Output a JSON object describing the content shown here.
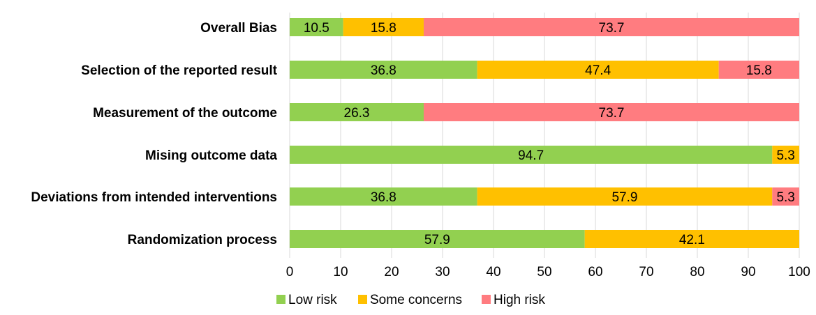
{
  "chart_data": {
    "type": "bar",
    "orientation": "horizontal",
    "stacked": true,
    "categories": [
      "Overall Bias",
      "Selection of the reported result",
      "Measurement of the outcome",
      "Mising outcome data",
      "Deviations from intended interventions",
      "Randomization process"
    ],
    "series": [
      {
        "name": "Low risk",
        "color": "#92d050",
        "values": [
          10.5,
          36.8,
          26.3,
          94.7,
          36.8,
          57.9
        ],
        "labels": [
          "10.5",
          "36.8",
          "26.3",
          "94.7",
          "36.8",
          "57.9"
        ]
      },
      {
        "name": "Some concerns",
        "color": "#ffc000",
        "values": [
          15.8,
          47.4,
          0,
          5.3,
          57.9,
          42.1
        ],
        "labels": [
          "15.8",
          "47.4",
          "",
          "5.3",
          "57.9",
          "42.1"
        ]
      },
      {
        "name": "High risk",
        "color": "#ff7c80",
        "values": [
          73.7,
          15.8,
          73.7,
          0,
          5.3,
          0
        ],
        "labels": [
          "73.7",
          "15.8",
          "73.7",
          "",
          "5.3",
          ""
        ]
      }
    ],
    "xlim": [
      0,
      100
    ],
    "xticks": [
      "0",
      "10",
      "20",
      "30",
      "40",
      "50",
      "60",
      "70",
      "80",
      "90",
      "100"
    ],
    "grid": "vertical",
    "legend": "bottom"
  }
}
